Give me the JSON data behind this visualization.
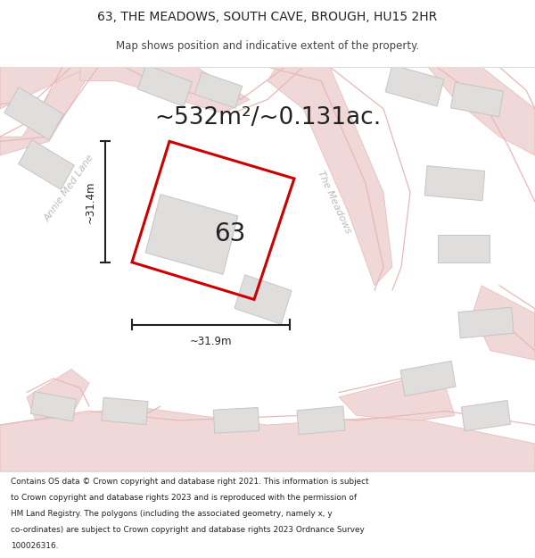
{
  "title_line1": "63, THE MEADOWS, SOUTH CAVE, BROUGH, HU15 2HR",
  "title_line2": "Map shows position and indicative extent of the property.",
  "area_text": "~532m²/~0.131ac.",
  "label_63": "63",
  "dim_width": "~31.9m",
  "dim_height": "~31.4m",
  "street_label1": "Annie Med Lane",
  "street_label2": "The Meadows",
  "footer_lines": [
    "Contains OS data © Crown copyright and database right 2021. This information is subject",
    "to Crown copyright and database rights 2023 and is reproduced with the permission of",
    "HM Land Registry. The polygons (including the associated geometry, namely x, y",
    "co-ordinates) are subject to Crown copyright and database rights 2023 Ordnance Survey",
    "100026316."
  ],
  "map_bg": "#f2f0f0",
  "road_fill": "#f0d8d8",
  "road_line": "#e8b8b8",
  "plot_color": "#cc0000",
  "building_fill": "#e0dddd",
  "building_edge": "#c8c4c4",
  "white": "#ffffff",
  "dim_color": "#222222",
  "text_dark": "#222222",
  "text_gray": "#aaaaaa",
  "footer_bg": "#ffffff",
  "title_bg": "#ffffff"
}
